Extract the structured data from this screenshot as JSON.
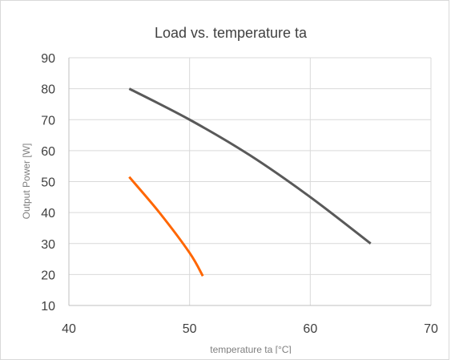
{
  "chart_data": {
    "type": "line",
    "title": "Load vs. temperature ta",
    "xlabel": "temperature ta [°C]",
    "ylabel": "Output Power [W]",
    "xlim": [
      40,
      70
    ],
    "ylim": [
      10,
      90
    ],
    "x_ticks": [
      "40",
      "50",
      "60",
      "70"
    ],
    "y_ticks": [
      "10",
      "20",
      "30",
      "40",
      "50",
      "60",
      "70",
      "80",
      "90"
    ],
    "grid": true,
    "legend": "none",
    "series": [
      {
        "color": "#595959",
        "points": [
          [
            45,
            80
          ],
          [
            50,
            70
          ],
          [
            55,
            58.5
          ],
          [
            60,
            45
          ],
          [
            65,
            30
          ]
        ]
      },
      {
        "color": "#ff6600",
        "points": [
          [
            45,
            51.5
          ],
          [
            47.5,
            40
          ],
          [
            50,
            27
          ],
          [
            51.1,
            19.5
          ]
        ]
      }
    ]
  }
}
